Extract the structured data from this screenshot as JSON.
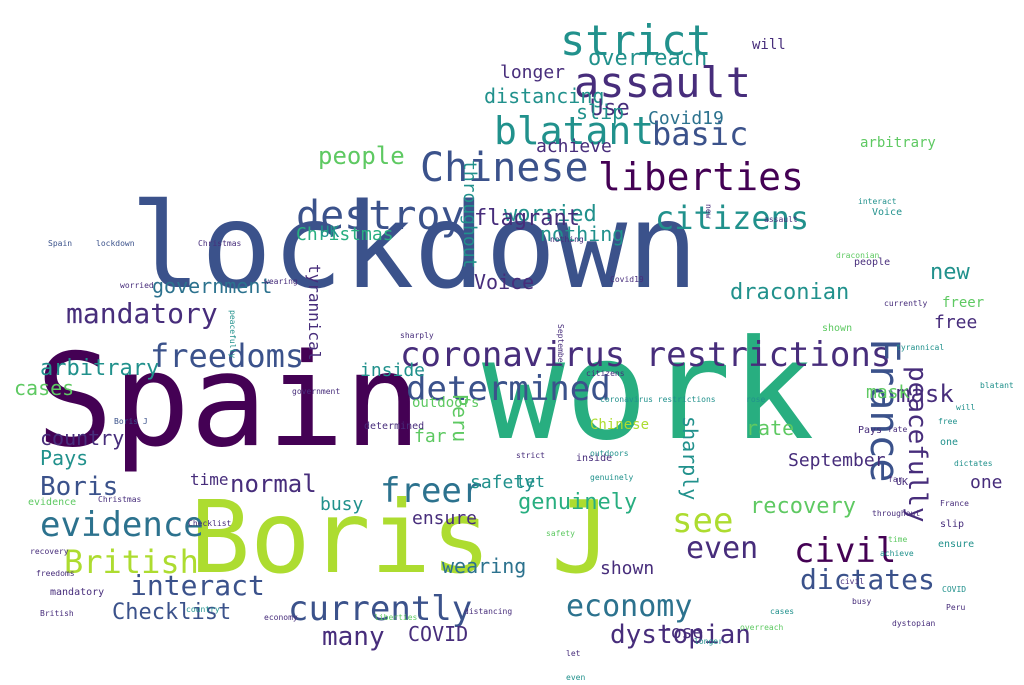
{
  "palette": {
    "dark_purple": "#440154",
    "indigo": "#472d7b",
    "blue": "#3b528b",
    "steel": "#2c728e",
    "teal": "#21918c",
    "green": "#28ae80",
    "lime": "#5ec962",
    "yellow_green": "#addc30"
  },
  "words": [
    {
      "text": "lockdown",
      "color": "blue"
    },
    {
      "text": "Spain",
      "color": "dark_purple"
    },
    {
      "text": "work",
      "color": "green"
    },
    {
      "text": "Boris J",
      "color": "yellow_green"
    },
    {
      "text": "coronavirus restrictions",
      "color": "indigo"
    },
    {
      "text": "France",
      "color": "blue"
    },
    {
      "text": "determined",
      "color": "blue"
    },
    {
      "text": "liberties",
      "color": "dark_purple"
    },
    {
      "text": "Chinese",
      "color": "blue"
    },
    {
      "text": "citizens",
      "color": "teal"
    },
    {
      "text": "destroy",
      "color": "blue"
    },
    {
      "text": "strict",
      "color": "teal"
    },
    {
      "text": "assault",
      "color": "indigo"
    },
    {
      "text": "blatant",
      "color": "teal"
    },
    {
      "text": "basic",
      "color": "blue"
    },
    {
      "text": "freedoms",
      "color": "blue"
    },
    {
      "text": "evidence",
      "color": "steel"
    },
    {
      "text": "British",
      "color": "yellow_green"
    },
    {
      "text": "mandatory",
      "color": "indigo"
    },
    {
      "text": "freer",
      "color": "steel"
    },
    {
      "text": "see",
      "color": "yellow_green"
    },
    {
      "text": "civil",
      "color": "dark_purple"
    },
    {
      "text": "dictates",
      "color": "blue"
    },
    {
      "text": "economy",
      "color": "steel"
    },
    {
      "text": "currently",
      "color": "blue"
    },
    {
      "text": "even",
      "color": "indigo"
    },
    {
      "text": "interact",
      "color": "blue"
    },
    {
      "text": "people",
      "color": "lime"
    },
    {
      "text": "peacefully",
      "color": "indigo"
    },
    {
      "text": "mask",
      "color": "indigo"
    },
    {
      "text": "dystopian",
      "color": "indigo"
    },
    {
      "text": "many",
      "color": "indigo"
    },
    {
      "text": "Boris",
      "color": "blue"
    },
    {
      "text": "normal",
      "color": "indigo"
    },
    {
      "text": "government",
      "color": "steel"
    },
    {
      "text": "arbitrary",
      "color": "teal"
    },
    {
      "text": "Christmas",
      "color": "green"
    },
    {
      "text": "worried",
      "color": "teal"
    },
    {
      "text": "flagrant",
      "color": "indigo"
    },
    {
      "text": "tyrannical",
      "color": "indigo"
    },
    {
      "text": "draconian",
      "color": "teal"
    },
    {
      "text": "new",
      "color": "teal"
    },
    {
      "text": "Checklist",
      "color": "blue"
    },
    {
      "text": "genuinely",
      "color": "green"
    },
    {
      "text": "recovery",
      "color": "lime"
    },
    {
      "text": "Covid19",
      "color": "steel"
    },
    {
      "text": "overreach",
      "color": "teal"
    },
    {
      "text": "throughout",
      "color": "teal"
    },
    {
      "text": "longer",
      "color": "indigo"
    },
    {
      "text": "distancing",
      "color": "teal"
    },
    {
      "text": "achieve",
      "color": "indigo"
    },
    {
      "text": "Use",
      "color": "indigo"
    },
    {
      "text": "Voice",
      "color": "indigo"
    },
    {
      "text": "nothing",
      "color": "teal"
    },
    {
      "text": "slip",
      "color": "teal"
    },
    {
      "text": "sharply",
      "color": "teal"
    },
    {
      "text": "rate",
      "color": "lime"
    },
    {
      "text": "Peru",
      "color": "lime"
    },
    {
      "text": "September",
      "color": "indigo"
    },
    {
      "text": "inside",
      "color": "teal"
    },
    {
      "text": "safety",
      "color": "teal"
    },
    {
      "text": "country",
      "color": "indigo"
    },
    {
      "text": "Pays",
      "color": "teal"
    },
    {
      "text": "cases",
      "color": "lime"
    },
    {
      "text": "wearing",
      "color": "steel"
    },
    {
      "text": "shown",
      "color": "indigo"
    },
    {
      "text": "COVID",
      "color": "indigo"
    },
    {
      "text": "rose",
      "color": "indigo"
    },
    {
      "text": "one",
      "color": "indigo"
    },
    {
      "text": "ensure",
      "color": "indigo"
    },
    {
      "text": "busy",
      "color": "teal"
    },
    {
      "text": "let",
      "color": "teal"
    },
    {
      "text": "time",
      "color": "indigo"
    },
    {
      "text": "outdoors",
      "color": "lime"
    },
    {
      "text": "UK",
      "color": "teal"
    },
    {
      "text": "far",
      "color": "lime"
    },
    {
      "text": "will",
      "color": "indigo"
    },
    {
      "text": "free",
      "color": "indigo"
    },
    {
      "text": "mask",
      "color": "lime"
    },
    {
      "text": "Chinese",
      "color": "yellow_green"
    },
    {
      "text": "freer",
      "color": "lime"
    },
    {
      "text": "arbitrary",
      "color": "lime"
    },
    {
      "text": "Spain",
      "color": "blue"
    },
    {
      "text": "lockdown",
      "color": "blue"
    },
    {
      "text": "Boris J",
      "color": "blue"
    },
    {
      "text": "peacefully",
      "color": "teal"
    },
    {
      "text": "determined",
      "color": "indigo"
    },
    {
      "text": "government",
      "color": "indigo"
    },
    {
      "text": "sharply",
      "color": "indigo"
    },
    {
      "text": "September",
      "color": "indigo"
    },
    {
      "text": "citizens",
      "color": "indigo"
    },
    {
      "text": "blatant",
      "color": "teal"
    },
    {
      "text": "dictates",
      "color": "teal"
    },
    {
      "text": "nothing",
      "color": "indigo"
    },
    {
      "text": "coronavirus restrictions",
      "color": "teal"
    },
    {
      "text": "safety",
      "color": "lime"
    },
    {
      "text": "Christmas",
      "color": "indigo"
    },
    {
      "text": "Christmas",
      "color": "indigo"
    },
    {
      "text": "evidence",
      "color": "lime"
    },
    {
      "text": "Checklist",
      "color": "indigo"
    },
    {
      "text": "genuinely",
      "color": "teal"
    },
    {
      "text": "mandatory",
      "color": "indigo"
    },
    {
      "text": "worried",
      "color": "indigo"
    },
    {
      "text": "strict",
      "color": "indigo"
    },
    {
      "text": "outdoors",
      "color": "teal"
    },
    {
      "text": "wearing",
      "color": "indigo"
    },
    {
      "text": "distancing",
      "color": "indigo"
    },
    {
      "text": "liberties",
      "color": "lime"
    },
    {
      "text": "economy",
      "color": "indigo"
    },
    {
      "text": "recovery",
      "color": "indigo"
    },
    {
      "text": "freedoms",
      "color": "indigo"
    },
    {
      "text": "British",
      "color": "indigo"
    },
    {
      "text": "country",
      "color": "teal"
    },
    {
      "text": "assault",
      "color": "indigo"
    },
    {
      "text": "currently",
      "color": "indigo"
    },
    {
      "text": "interact",
      "color": "teal"
    },
    {
      "text": "dystopian",
      "color": "indigo"
    },
    {
      "text": "overreach",
      "color": "lime"
    },
    {
      "text": "achieve",
      "color": "teal"
    },
    {
      "text": "France",
      "color": "indigo"
    },
    {
      "text": "cases",
      "color": "teal"
    },
    {
      "text": "civil",
      "color": "indigo"
    },
    {
      "text": "people",
      "color": "indigo"
    },
    {
      "text": "new",
      "color": "indigo"
    },
    {
      "text": "Voice",
      "color": "teal"
    },
    {
      "text": "shown",
      "color": "lime"
    },
    {
      "text": "inside",
      "color": "indigo"
    },
    {
      "text": "tyrannical",
      "color": "teal"
    },
    {
      "text": "draconian",
      "color": "lime"
    },
    {
      "text": "Covid19",
      "color": "indigo"
    },
    {
      "text": "throughout",
      "color": "indigo"
    },
    {
      "text": "longer",
      "color": "teal"
    },
    {
      "text": "busy",
      "color": "indigo"
    },
    {
      "text": "rose",
      "color": "teal"
    },
    {
      "text": "Pays",
      "color": "indigo"
    },
    {
      "text": "UK",
      "color": "indigo"
    },
    {
      "text": "Peru",
      "color": "indigo"
    },
    {
      "text": "COVID",
      "color": "teal"
    },
    {
      "text": "slip",
      "color": "indigo"
    },
    {
      "text": "one",
      "color": "teal"
    },
    {
      "text": "rate",
      "color": "indigo"
    },
    {
      "text": "ensure",
      "color": "teal"
    },
    {
      "text": "time",
      "color": "lime"
    },
    {
      "text": "let",
      "color": "indigo"
    },
    {
      "text": "far",
      "color": "indigo"
    },
    {
      "text": "will",
      "color": "teal"
    },
    {
      "text": "free",
      "color": "teal"
    },
    {
      "text": "even",
      "color": "teal"
    },
    {
      "text": "many",
      "color": "teal"
    },
    {
      "text": "see",
      "color": "indigo"
    },
    {
      "text": "basic",
      "color": "teal"
    },
    {
      "text": "flagrant",
      "color": "teal"
    },
    {
      "text": "arbitrary",
      "color": "indigo"
    },
    {
      "text": "mask",
      "color": "teal"
    },
    {
      "text": "normal",
      "color": "teal"
    },
    {
      "text": "Use",
      "color": "teal"
    },
    {
      "text": "work",
      "color": "indigo"
    }
  ]
}
